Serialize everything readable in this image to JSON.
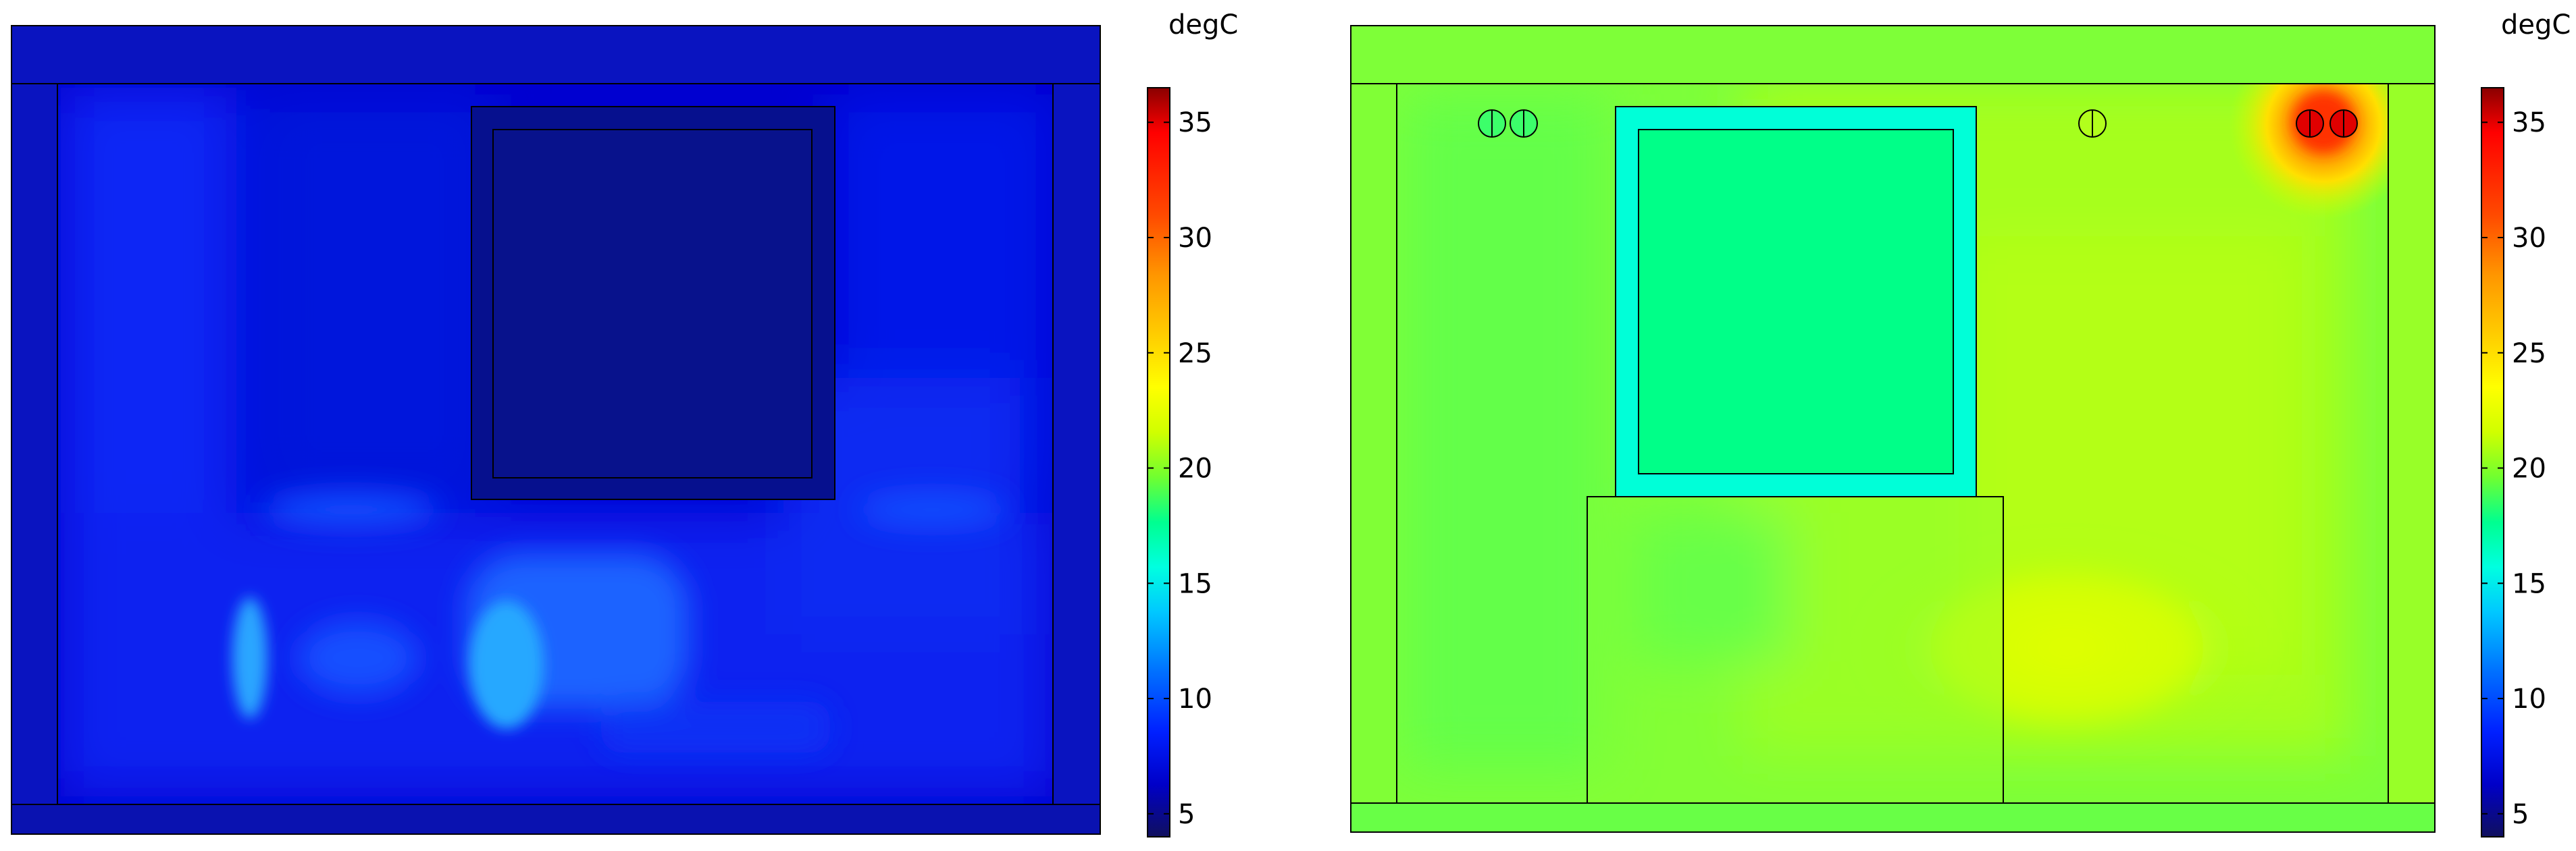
{
  "chart_data": [
    {
      "type": "heatmap",
      "title": "",
      "colorbar": {
        "unit": "degC",
        "ticks": [
          5,
          10,
          15,
          20,
          25,
          30,
          35
        ],
        "range": [
          4,
          36.5
        ],
        "colormap": "rainbow"
      },
      "field_description_values_degC": {
        "background_min": 5,
        "background_typical": 8,
        "hot_spot_left_low": 14,
        "hot_spot_center_low": 13
      }
    },
    {
      "type": "heatmap",
      "title": "",
      "colorbar": {
        "unit": "degC",
        "ticks": [
          5,
          10,
          15,
          20,
          25,
          30,
          35
        ],
        "range": [
          4,
          36.5
        ],
        "colormap": "rainbow"
      },
      "field_description_values_degC": {
        "background_typical": 21,
        "box_frame": 16,
        "box_interior": 19,
        "warm_region_lower_right": 24,
        "hot_spot_top_right": 36
      }
    }
  ],
  "colors": {
    "frame_stroke": "#000000",
    "rainbow_stops": [
      "#08086e",
      "#0000c8",
      "#0000ff",
      "#0060ff",
      "#00c8ff",
      "#00ffd0",
      "#00ff80",
      "#60ff40",
      "#c8ff00",
      "#ffff00",
      "#ffc000",
      "#ff8000",
      "#ff3000",
      "#ff0000",
      "#a00000"
    ]
  }
}
